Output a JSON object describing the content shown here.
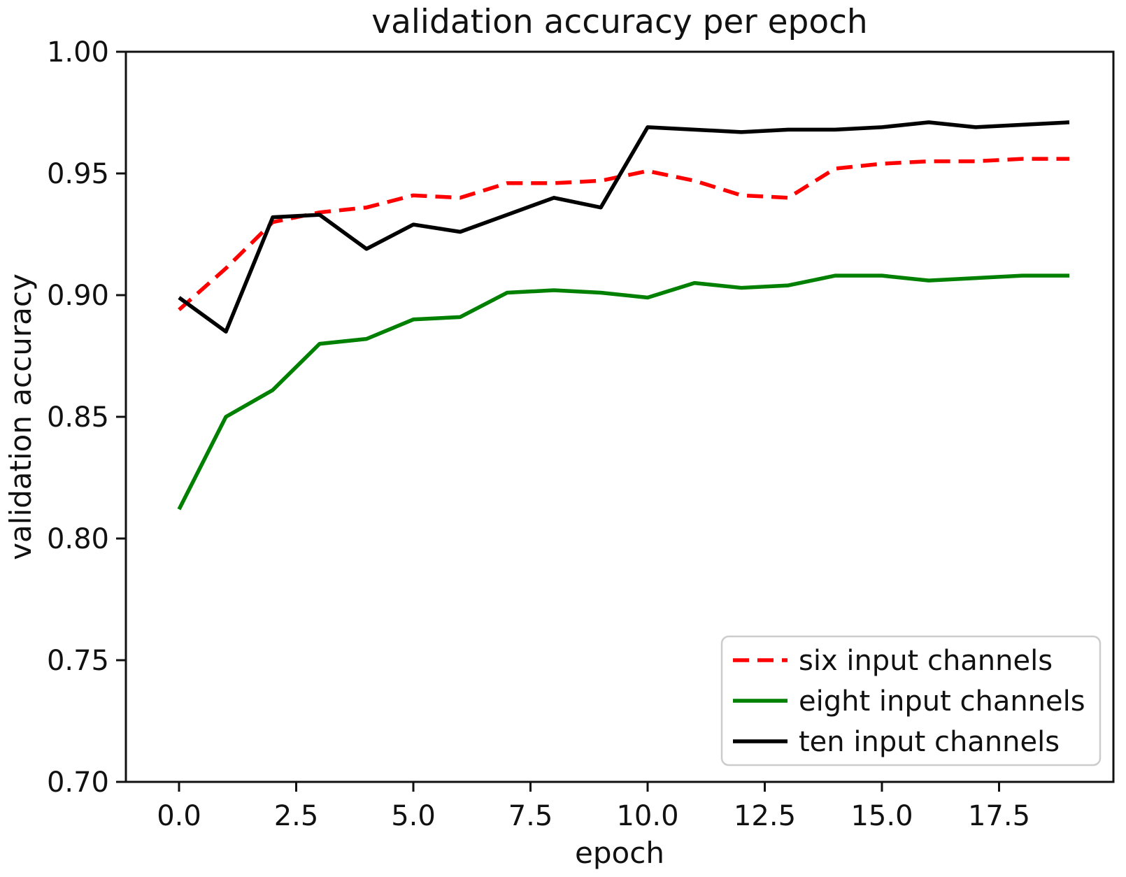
{
  "chart_data": {
    "type": "line",
    "title": "validation accuracy per epoch",
    "xlabel": "epoch",
    "ylabel": "validation accuracy",
    "x": [
      0,
      1,
      2,
      3,
      4,
      5,
      6,
      7,
      8,
      9,
      10,
      11,
      12,
      13,
      14,
      15,
      16,
      17,
      18,
      19
    ],
    "series": [
      {
        "name": "six input channels",
        "color": "#ff0000",
        "line_style": "dashed",
        "values": [
          0.894,
          0.911,
          0.93,
          0.934,
          0.936,
          0.941,
          0.94,
          0.946,
          0.946,
          0.947,
          0.951,
          0.947,
          0.941,
          0.94,
          0.952,
          0.954,
          0.955,
          0.955,
          0.956,
          0.956
        ]
      },
      {
        "name": "eight input channels",
        "color": "#008000",
        "line_style": "solid",
        "values": [
          0.812,
          0.85,
          0.861,
          0.88,
          0.882,
          0.89,
          0.891,
          0.901,
          0.902,
          0.901,
          0.899,
          0.905,
          0.903,
          0.904,
          0.908,
          0.908,
          0.906,
          0.907,
          0.908,
          0.908
        ]
      },
      {
        "name": "ten input channels",
        "color": "#000000",
        "line_style": "solid",
        "values": [
          0.899,
          0.885,
          0.932,
          0.933,
          0.919,
          0.929,
          0.926,
          0.933,
          0.94,
          0.936,
          0.969,
          0.968,
          0.967,
          0.968,
          0.968,
          0.969,
          0.971,
          0.969,
          0.97,
          0.971
        ]
      }
    ],
    "x_ticks": {
      "values": [
        0,
        2.5,
        5,
        7.5,
        10,
        12.5,
        15,
        17.5
      ],
      "labels": [
        "0.0",
        "2.5",
        "5.0",
        "7.5",
        "10.0",
        "12.5",
        "15.0",
        "17.5"
      ]
    },
    "y_ticks": {
      "values": [
        0.7,
        0.75,
        0.8,
        0.85,
        0.9,
        0.95,
        1.0
      ],
      "labels": [
        "0.70",
        "0.75",
        "0.80",
        "0.85",
        "0.90",
        "0.95",
        "1.00"
      ]
    },
    "xlim": [
      -1.13,
      19.95
    ],
    "ylim": [
      0.7,
      1.0
    ],
    "grid": false,
    "legend": {
      "position": "lower right",
      "entries": [
        "six input channels",
        "eight input channels",
        "ten input channels"
      ]
    },
    "colors": {
      "axis": "#111111",
      "legend_border": "#cccccc",
      "background": "#ffffff"
    }
  }
}
